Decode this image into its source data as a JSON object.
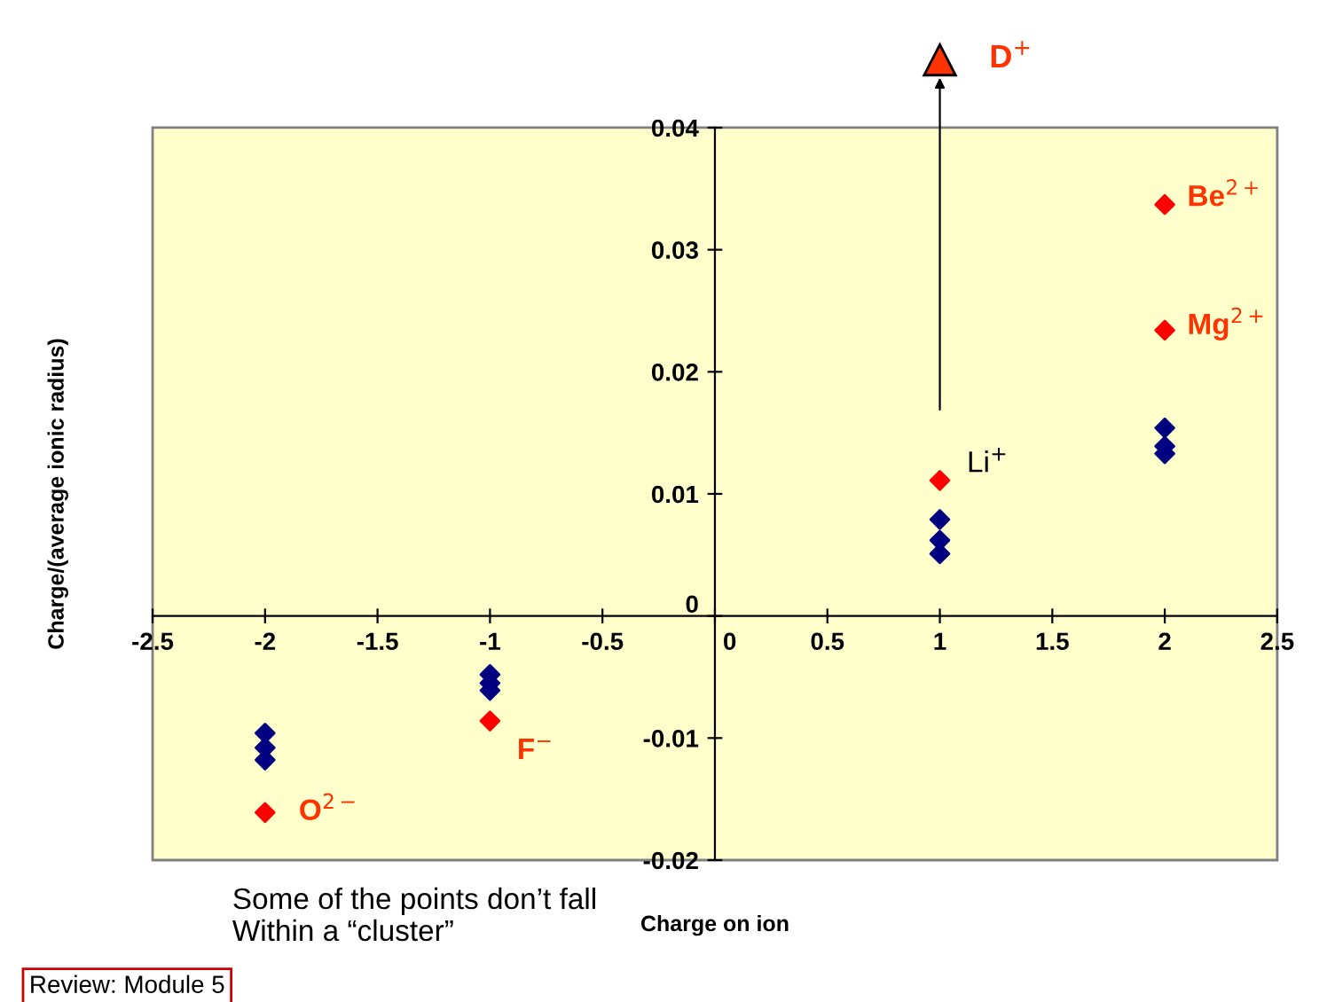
{
  "chart_data": {
    "type": "scatter",
    "xlabel": "Charge on ion",
    "ylabel": "Charge/(average ionic radius)",
    "xlim": [
      -2.5,
      2.5
    ],
    "ylim": [
      -0.02,
      0.04
    ],
    "xticks": [
      -2.5,
      -2,
      -1.5,
      -1,
      -0.5,
      0,
      0.5,
      1,
      1.5,
      2,
      2.5
    ],
    "yticks": [
      -0.02,
      -0.01,
      0,
      0.01,
      0.02,
      0.03,
      0.04
    ],
    "grid": false,
    "marker": "diamond",
    "series": [
      {
        "color": "#000080",
        "x": [
          -2,
          -2,
          -2,
          -1,
          -1,
          -1,
          1,
          1,
          1,
          2,
          2,
          2
        ],
        "values": [
          -0.0096,
          -0.0108,
          -0.0118,
          -0.0048,
          -0.0055,
          -0.0061,
          0.0079,
          0.0062,
          0.0051,
          0.0154,
          0.0139,
          0.0133
        ]
      },
      {
        "color": "#ff0000",
        "x": [
          -2,
          -1,
          1,
          2,
          2
        ],
        "values": [
          -0.0161,
          -0.0086,
          0.0111,
          0.0337,
          0.0234
        ]
      }
    ],
    "annotations": [
      {
        "text": "Be$^{2+}$",
        "x": 2,
        "y": 0.0337
      },
      {
        "text": "Mg$^{2+}$",
        "x": 2,
        "y": 0.0234
      },
      {
        "text": "Li$^{+}$",
        "x": 1,
        "y": 0.0111
      },
      {
        "text": "F$^{−}$",
        "x": -1,
        "y": -0.0086
      },
      {
        "text": "O$^{2−}$",
        "x": -2,
        "y": -0.0161
      },
      "D$^{+}$",
      "Some of the points don’t fall\nWithin a “cluster”",
      "Review: Module 5"
    ]
  }
}
